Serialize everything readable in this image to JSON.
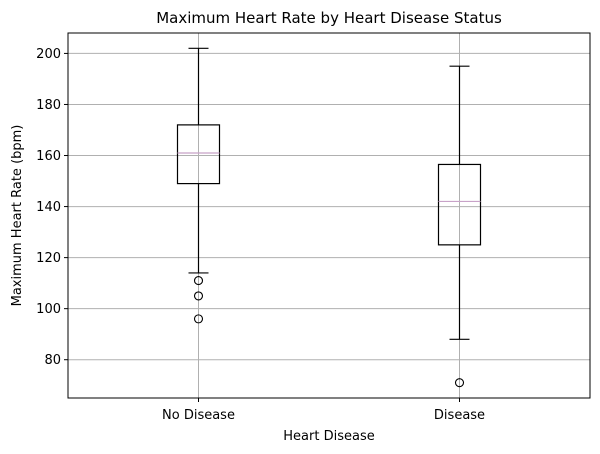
{
  "chart_data": {
    "type": "box",
    "title": "Maximum Heart Rate by Heart Disease Status",
    "xlabel": "Heart Disease",
    "ylabel": "Maximum Heart Rate (bpm)",
    "ylim": [
      65,
      208
    ],
    "yticks": [
      80,
      100,
      120,
      140,
      160,
      180,
      200
    ],
    "grid": true,
    "categories": [
      "No Disease",
      "Disease"
    ],
    "boxes": [
      {
        "category": "No Disease",
        "whisker_low": 114,
        "q1": 149,
        "median": 161,
        "q3": 172,
        "whisker_high": 202,
        "outliers": [
          111,
          105,
          96
        ]
      },
      {
        "category": "Disease",
        "whisker_low": 88,
        "q1": 125,
        "median": 142,
        "q3": 156.5,
        "whisker_high": 195,
        "outliers": [
          71
        ]
      }
    ],
    "colors": {
      "box": "#000000",
      "median": "#c8a2c8",
      "grid": "#b0b0b0"
    }
  }
}
